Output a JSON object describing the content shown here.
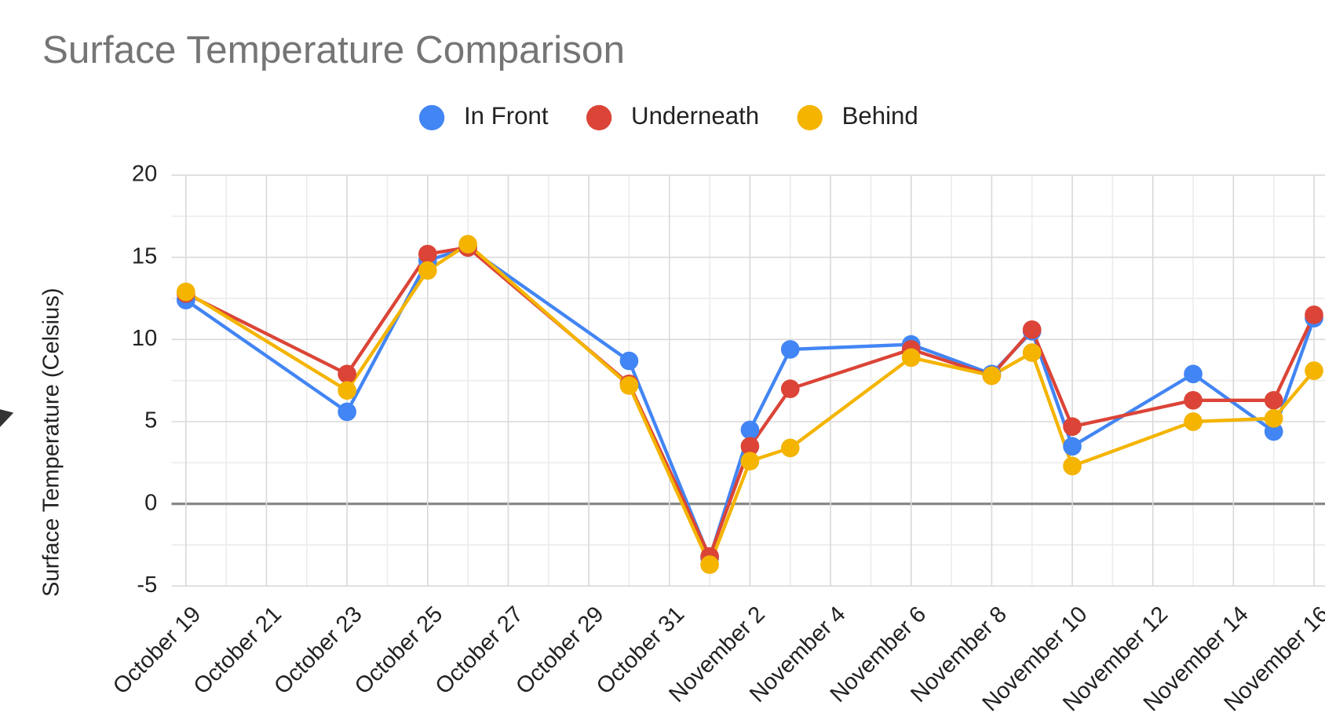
{
  "chart_data": {
    "type": "line",
    "title": "Surface Temperature Comparison",
    "y_label": "Surface Temperature (Celsius)",
    "x": [
      "October 19",
      "October 23",
      "October 25",
      "October 26",
      "October 30",
      "November 1",
      "November 2",
      "November 3",
      "November 6",
      "November 8",
      "November 9",
      "November 10",
      "November 13",
      "November 15",
      "November 16"
    ],
    "series": [
      {
        "name": "In Front",
        "color": "#4285f4",
        "values": [
          12.4,
          5.6,
          14.8,
          15.6,
          8.7,
          -3.3,
          4.5,
          9.4,
          9.7,
          7.9,
          10.5,
          3.5,
          7.9,
          4.4,
          11.3
        ]
      },
      {
        "name": "Underneath",
        "color": "#db4437",
        "values": [
          12.8,
          7.9,
          15.2,
          15.6,
          7.3,
          -3.2,
          3.5,
          7.0,
          9.4,
          7.8,
          10.6,
          4.7,
          6.3,
          6.3,
          11.5
        ]
      },
      {
        "name": "Behind",
        "color": "#f4b400",
        "values": [
          12.9,
          6.9,
          14.2,
          15.8,
          7.2,
          -3.7,
          2.6,
          3.4,
          8.9,
          7.8,
          9.2,
          2.3,
          5.0,
          5.2,
          8.1
        ]
      }
    ],
    "xlim": [
      "October 19",
      "November 16"
    ],
    "xticks": [
      "October 19",
      "October 21",
      "October 23",
      "October 25",
      "October 27",
      "October 29",
      "October 31",
      "November 2",
      "November 4",
      "November 6",
      "November 8",
      "November 10",
      "November 12",
      "November 14",
      "November 16"
    ],
    "ylim": [
      -5,
      20
    ],
    "yticks": [
      -5,
      0,
      5,
      10,
      15,
      20
    ],
    "grid": true,
    "minor_grid": true,
    "legend": "top"
  }
}
